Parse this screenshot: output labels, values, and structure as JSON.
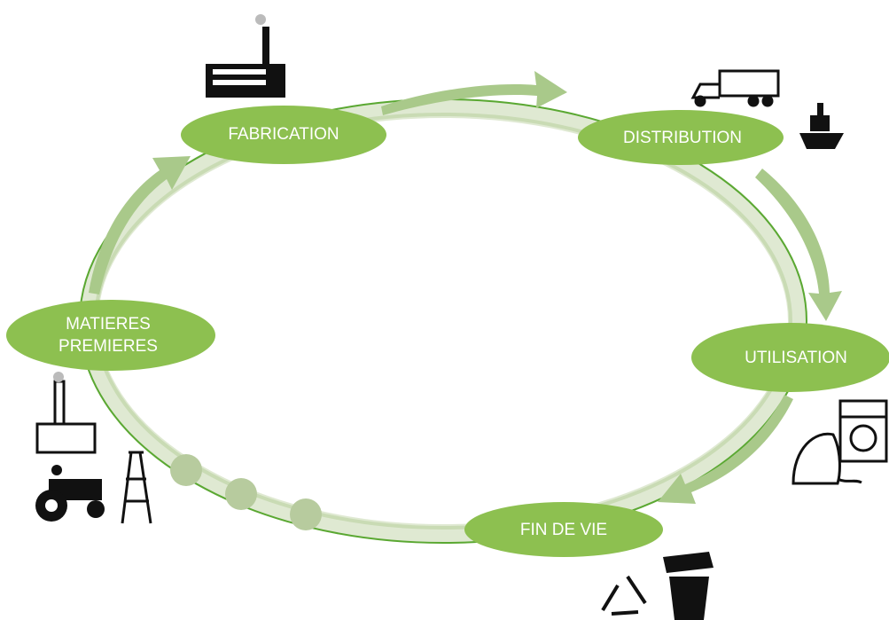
{
  "nodes": [
    {
      "label": "FABRICATION"
    },
    {
      "label": "DISTRIBUTION"
    },
    {
      "label": "UTILISATION"
    },
    {
      "label": "FIN DE VIE"
    },
    {
      "lines": [
        "MATIERES",
        "PREMIERES"
      ]
    }
  ]
}
